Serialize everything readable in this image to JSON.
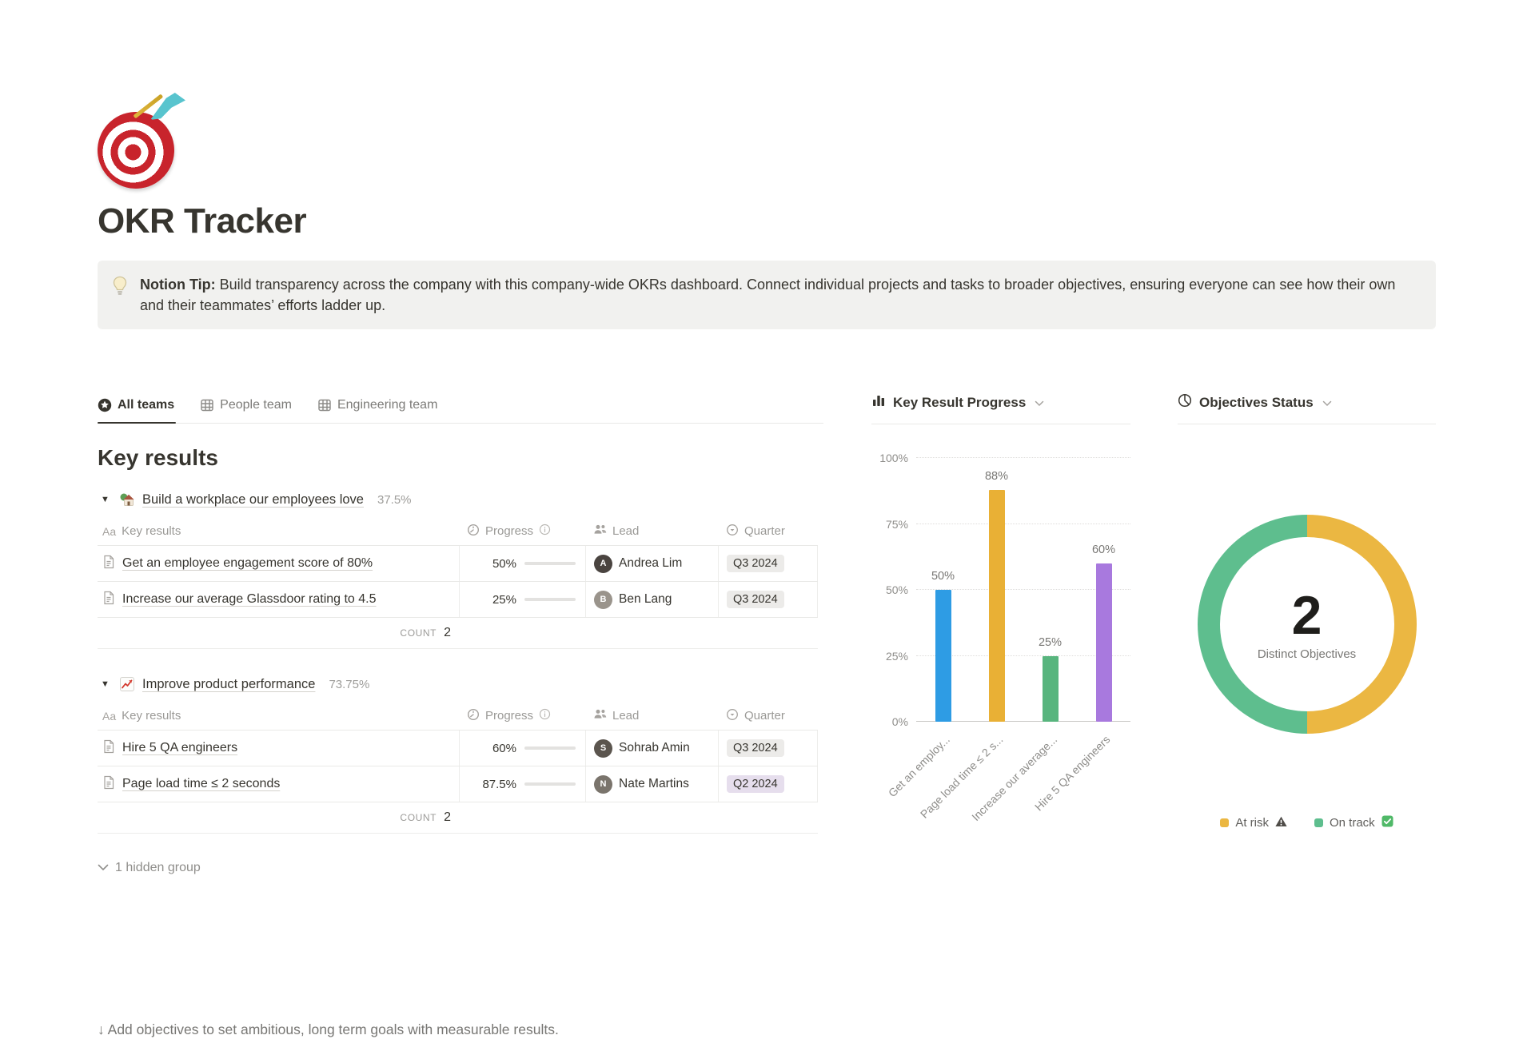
{
  "header": {
    "title": "OKR Tracker",
    "icon": "target-dart-emoji",
    "tip_label": "Notion Tip:",
    "tip_body": " Build transparency across the company with this company-wide OKRs dashboard. Connect individual projects and tasks to broader objectives, ensuring everyone can see how their own and their teammates’ efforts ladder up."
  },
  "tabs": [
    {
      "label": "All teams",
      "icon": "star-circle-icon",
      "active": true
    },
    {
      "label": "People team",
      "icon": "table-icon",
      "active": false
    },
    {
      "label": "Engineering team",
      "icon": "table-icon",
      "active": false
    }
  ],
  "main": {
    "heading": "Key results",
    "columns": {
      "name": "Key results",
      "progress": "Progress",
      "lead": "Lead",
      "quarter": "Quarter"
    },
    "name_icon_label": "Aa",
    "groups": [
      {
        "icon": "house-garden-emoji",
        "title": "Build a workplace our employees love",
        "percent": "37.5%",
        "count_label": "COUNT",
        "count_value": "2",
        "rows": [
          {
            "title": "Get an employee engagement score of 80%",
            "progress_label": "50%",
            "progress_value": 50,
            "lead": "Andrea Lim",
            "lead_initial": "A",
            "quarter": "Q3 2024",
            "quarter_color": "gray"
          },
          {
            "title": "Increase our average Glassdoor rating to 4.5",
            "progress_label": "25%",
            "progress_value": 25,
            "lead": "Ben Lang",
            "lead_initial": "B",
            "quarter": "Q3 2024",
            "quarter_color": "gray"
          }
        ]
      },
      {
        "icon": "chart-increasing-emoji",
        "title": "Improve product performance",
        "percent": "73.75%",
        "count_label": "COUNT",
        "count_value": "2",
        "rows": [
          {
            "title": "Hire 5 QA engineers",
            "progress_label": "60%",
            "progress_value": 60,
            "lead": "Sohrab Amin",
            "lead_initial": "S",
            "quarter": "Q3 2024",
            "quarter_color": "gray"
          },
          {
            "title": "Page load time ≤ 2 seconds",
            "progress_label": "87.5%",
            "progress_value": 87.5,
            "lead": "Nate Martins",
            "lead_initial": "N",
            "quarter": "Q2 2024",
            "quarter_color": "purple"
          }
        ]
      }
    ],
    "hidden_group_label": "1 hidden group",
    "footer_note": "↓ Add objectives to set ambitious, long term goals with measurable results."
  },
  "chart_data": [
    {
      "type": "bar",
      "title": "Key Result Progress",
      "categories": [
        "Get an employ...",
        "Page load time ≤ 2 s...",
        "Increase our average...",
        "Hire 5 QA engineers"
      ],
      "values": [
        50,
        88,
        25,
        60
      ],
      "value_labels": [
        "50%",
        "88%",
        "25%",
        "60%"
      ],
      "bar_colors": [
        "#2E9CE4",
        "#E9B035",
        "#58B57E",
        "#A879DE"
      ],
      "yticks": [
        "0%",
        "25%",
        "50%",
        "75%",
        "100%"
      ],
      "ylim": [
        0,
        100
      ],
      "grid": "dotted-horizontal",
      "xlabel_rotation": -45
    },
    {
      "type": "pie",
      "title": "Objectives Status",
      "center_value": "2",
      "center_label": "Distinct Objectives",
      "slices": [
        {
          "label": "At risk",
          "value": 1,
          "percent": 50,
          "color": "#EBB742",
          "legend_icon": "warning-icon"
        },
        {
          "label": "On track",
          "value": 1,
          "percent": 50,
          "color": "#5EBE8E",
          "legend_icon": "check-icon"
        }
      ],
      "legend_position": "bottom"
    }
  ],
  "colors": {
    "progress_fill": "#6B9B7B",
    "progress_track": "#E3E2E0",
    "callout_bg": "#F1F1EF",
    "tag_gray": "#ECEBE9",
    "tag_purple": "#E6DEED",
    "border": "#E9E9E7",
    "text_primary": "#37352F",
    "text_secondary": "#787774"
  },
  "avatar_colors": [
    "#4A4440",
    "#9A948C",
    "#5B554E",
    "#7A746C"
  ]
}
